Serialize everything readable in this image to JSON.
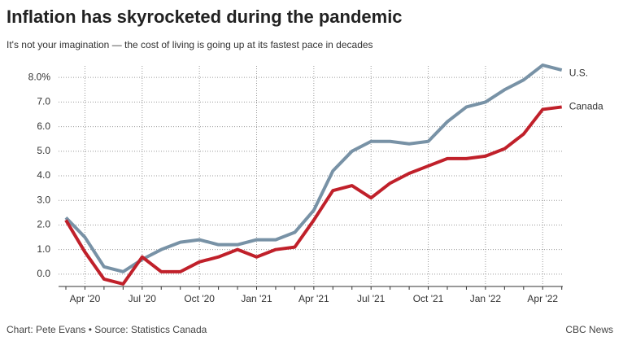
{
  "chart_data": {
    "type": "line",
    "title": "Inflation has skyrocketed during the pandemic",
    "subtitle": "It's not your imagination — the cost of living is going up at its fastest pace in decades",
    "source": "Chart: Pete Evans • Source: Statistics Canada",
    "publisher": "CBC News",
    "categories": [
      null,
      "Apr '20",
      null,
      null,
      "Jul '20",
      null,
      null,
      "Oct '20",
      null,
      null,
      "Jan '21",
      null,
      null,
      "Apr '21",
      null,
      null,
      "Jul '21",
      null,
      null,
      "Oct '21",
      null,
      null,
      "Jan '22",
      null,
      null,
      "Apr '22",
      null
    ],
    "series": [
      {
        "name": "U.S.",
        "color": "#7892a6",
        "values": [
          2.3,
          1.5,
          0.3,
          0.1,
          0.6,
          1.0,
          1.3,
          1.4,
          1.2,
          1.2,
          1.4,
          1.4,
          1.7,
          2.6,
          4.2,
          5.0,
          5.4,
          5.4,
          5.3,
          5.4,
          6.2,
          6.8,
          7.0,
          7.5,
          7.9,
          8.5,
          8.3
        ]
      },
      {
        "name": "Canada",
        "color": "#c0202a",
        "values": [
          2.2,
          0.9,
          -0.2,
          -0.4,
          0.7,
          0.1,
          0.1,
          0.5,
          0.7,
          1.0,
          0.7,
          1.0,
          1.1,
          2.2,
          3.4,
          3.6,
          3.1,
          3.7,
          4.1,
          4.4,
          4.7,
          4.7,
          4.8,
          5.1,
          5.7,
          6.7,
          6.8
        ]
      }
    ],
    "ylim": [
      -0.5,
      8.8
    ],
    "yticks": [
      {
        "value": 0,
        "label": "0.0"
      },
      {
        "value": 1,
        "label": "1.0"
      },
      {
        "value": 2,
        "label": "2.0"
      },
      {
        "value": 3,
        "label": "3.0"
      },
      {
        "value": 4,
        "label": "4.0"
      },
      {
        "value": 5,
        "label": "5.0"
      },
      {
        "value": 6,
        "label": "6.0"
      },
      {
        "value": 7,
        "label": "7.0"
      },
      {
        "value": 8,
        "label": "8.0%"
      }
    ],
    "grid": true
  }
}
